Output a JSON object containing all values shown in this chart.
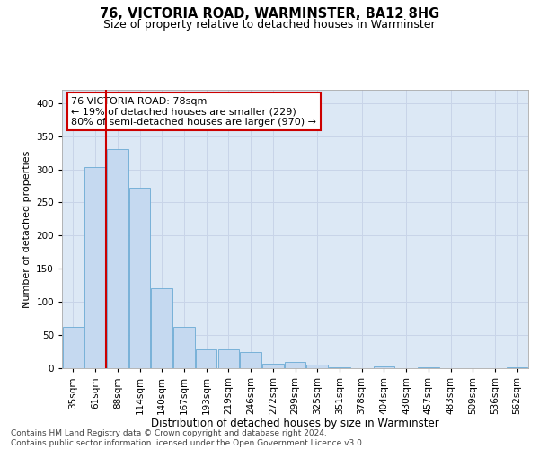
{
  "title1": "76, VICTORIA ROAD, WARMINSTER, BA12 8HG",
  "title2": "Size of property relative to detached houses in Warminster",
  "xlabel": "Distribution of detached houses by size in Warminster",
  "ylabel": "Number of detached properties",
  "categories": [
    "35sqm",
    "61sqm",
    "88sqm",
    "114sqm",
    "140sqm",
    "167sqm",
    "193sqm",
    "219sqm",
    "246sqm",
    "272sqm",
    "299sqm",
    "325sqm",
    "351sqm",
    "378sqm",
    "404sqm",
    "430sqm",
    "457sqm",
    "483sqm",
    "509sqm",
    "536sqm",
    "562sqm"
  ],
  "values": [
    62,
    303,
    330,
    272,
    120,
    63,
    29,
    28,
    25,
    7,
    10,
    5,
    2,
    0,
    3,
    0,
    2,
    0,
    0,
    0,
    2
  ],
  "bar_color": "#c5d9f0",
  "bar_edge_color": "#6aaad4",
  "vline_color": "#cc0000",
  "vline_x": 1.67,
  "annotation_text": "76 VICTORIA ROAD: 78sqm\n← 19% of detached houses are smaller (229)\n80% of semi-detached houses are larger (970) →",
  "annotation_box_color": "white",
  "annotation_box_edge": "#cc0000",
  "ylim": [
    0,
    420
  ],
  "yticks": [
    0,
    50,
    100,
    150,
    200,
    250,
    300,
    350,
    400
  ],
  "grid_color": "#c8d4e8",
  "bg_color": "#dce8f5",
  "footnote": "Contains HM Land Registry data © Crown copyright and database right 2024.\nContains public sector information licensed under the Open Government Licence v3.0.",
  "title1_fontsize": 10.5,
  "title2_fontsize": 9,
  "xlabel_fontsize": 8.5,
  "ylabel_fontsize": 8,
  "tick_fontsize": 7.5,
  "annot_fontsize": 8,
  "footnote_fontsize": 6.5
}
